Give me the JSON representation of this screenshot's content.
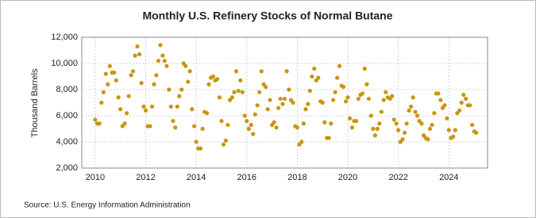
{
  "chart_data": {
    "type": "scatter",
    "title": "Monthly U.S. Refinery Stocks of Normal Butane",
    "y_label": "Thousand Barrels",
    "source": "Source: U.S. Energy Information Administration",
    "color": "#c8960c",
    "grid": true,
    "xlim": [
      2009.47,
      2025.53
    ],
    "xticks": [
      2010,
      2012,
      2014,
      2016,
      2018,
      2020,
      2022,
      2024
    ],
    "ylim": [
      2000,
      12000
    ],
    "yticks": [
      {
        "value": 2000,
        "label": "2,000"
      },
      {
        "value": 4000,
        "label": "4,000"
      },
      {
        "value": 6000,
        "label": "6,000"
      },
      {
        "value": 8000,
        "label": "8,000"
      },
      {
        "value": 10000,
        "label": "10,000"
      },
      {
        "value": 12000,
        "label": "12,000"
      }
    ],
    "x": [
      2010.0,
      2010.08,
      2010.17,
      2010.25,
      2010.33,
      2010.42,
      2010.5,
      2010.58,
      2010.67,
      2010.75,
      2010.83,
      2010.92,
      2011.0,
      2011.08,
      2011.17,
      2011.25,
      2011.33,
      2011.42,
      2011.5,
      2011.58,
      2011.67,
      2011.75,
      2011.83,
      2011.92,
      2012.0,
      2012.08,
      2012.17,
      2012.25,
      2012.33,
      2012.42,
      2012.5,
      2012.58,
      2012.67,
      2012.75,
      2012.83,
      2012.92,
      2013.0,
      2013.08,
      2013.17,
      2013.25,
      2013.33,
      2013.42,
      2013.5,
      2013.58,
      2013.67,
      2013.75,
      2013.83,
      2013.92,
      2014.0,
      2014.08,
      2014.17,
      2014.25,
      2014.33,
      2014.42,
      2014.5,
      2014.58,
      2014.67,
      2014.75,
      2014.83,
      2014.92,
      2015.0,
      2015.08,
      2015.17,
      2015.25,
      2015.33,
      2015.42,
      2015.5,
      2015.58,
      2015.67,
      2015.75,
      2015.83,
      2015.92,
      2016.0,
      2016.08,
      2016.17,
      2016.25,
      2016.33,
      2016.42,
      2016.5,
      2016.58,
      2016.67,
      2016.75,
      2016.83,
      2016.92,
      2017.0,
      2017.08,
      2017.17,
      2017.25,
      2017.33,
      2017.42,
      2017.5,
      2017.58,
      2017.67,
      2017.75,
      2017.83,
      2017.92,
      2018.0,
      2018.08,
      2018.17,
      2018.25,
      2018.33,
      2018.42,
      2018.5,
      2018.58,
      2018.67,
      2018.75,
      2018.83,
      2018.92,
      2019.0,
      2019.08,
      2019.17,
      2019.25,
      2019.33,
      2019.42,
      2019.5,
      2019.58,
      2019.67,
      2019.75,
      2019.83,
      2019.92,
      2020.0,
      2020.08,
      2020.17,
      2020.25,
      2020.33,
      2020.42,
      2020.5,
      2020.58,
      2020.67,
      2020.75,
      2020.83,
      2020.92,
      2021.0,
      2021.08,
      2021.17,
      2021.25,
      2021.33,
      2021.42,
      2021.5,
      2021.58,
      2021.67,
      2021.75,
      2021.83,
      2021.92,
      2022.0,
      2022.08,
      2022.17,
      2022.25,
      2022.33,
      2022.42,
      2022.5,
      2022.58,
      2022.67,
      2022.75,
      2022.83,
      2022.92,
      2023.0,
      2023.08,
      2023.17,
      2023.25,
      2023.33,
      2023.42,
      2023.5,
      2023.58,
      2023.67,
      2023.75,
      2023.83,
      2023.92,
      2024.0,
      2024.08,
      2024.17,
      2024.25,
      2024.33,
      2024.42,
      2024.5,
      2024.58,
      2024.67,
      2024.75,
      2024.83,
      2024.92,
      2025.0,
      2025.08
    ],
    "values": [
      5700,
      5400,
      5400,
      7000,
      7800,
      9200,
      8400,
      9800,
      9300,
      9300,
      8700,
      7400,
      6500,
      5200,
      5400,
      6200,
      7500,
      9100,
      9400,
      10600,
      11300,
      10700,
      8500,
      6700,
      6400,
      5200,
      5200,
      6700,
      8400,
      9100,
      10200,
      11400,
      10600,
      10200,
      9800,
      8000,
      6700,
      5600,
      5100,
      6700,
      7500,
      8000,
      10000,
      9800,
      8600,
      9400,
      6500,
      5200,
      4000,
      3500,
      3500,
      5000,
      6300,
      6200,
      8400,
      8900,
      9000,
      8700,
      8800,
      7400,
      5600,
      3800,
      4100,
      5300,
      7200,
      7400,
      7800,
      9400,
      7900,
      8700,
      7800,
      6000,
      5600,
      5000,
      5300,
      4600,
      6100,
      6800,
      7800,
      9400,
      8400,
      8200,
      6500,
      7200,
      5300,
      5500,
      5100,
      6600,
      7300,
      6900,
      7300,
      9400,
      8000,
      7200,
      7000,
      5200,
      5100,
      3800,
      4000,
      5400,
      6500,
      6900,
      7900,
      9000,
      9600,
      8700,
      8900,
      7100,
      7000,
      5500,
      4300,
      4300,
      5400,
      7200,
      7800,
      8900,
      9800,
      8300,
      8200,
      7100,
      7400,
      5800,
      5100,
      5600,
      5600,
      7300,
      7600,
      7700,
      9600,
      8400,
      7300,
      6000,
      5000,
      4500,
      5000,
      5400,
      6300,
      7200,
      7800,
      7400,
      7300,
      7500,
      5700,
      5400,
      4900,
      4000,
      4200,
      4700,
      5400,
      6400,
      6700,
      7400,
      6300,
      6000,
      5600,
      5400,
      4500,
      4300,
      4200,
      5000,
      5300,
      6200,
      7700,
      7700,
      7200,
      6600,
      6800,
      5800,
      4900,
      4300,
      4400,
      4900,
      6200,
      6400,
      7000,
      7600,
      7300,
      6800,
      6800,
      5300,
      4800,
      4700
    ]
  }
}
